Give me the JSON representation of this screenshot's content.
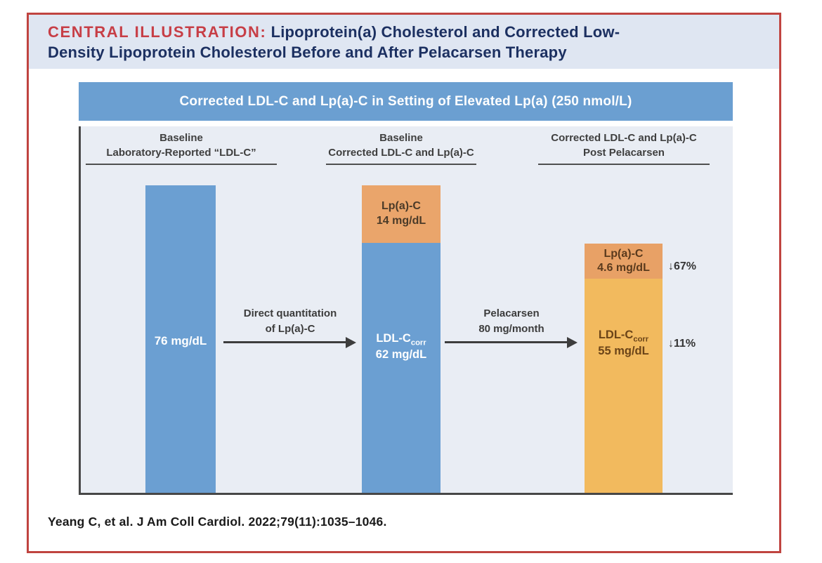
{
  "title": {
    "label": "CENTRAL ILLUSTRATION:",
    "text_line1": "Lipoprotein(a) Cholesterol and Corrected Low-",
    "text_line2": "Density Lipoprotein Cholesterol Before and After Pelacarsen Therapy"
  },
  "chart_title": "Corrected LDL-C and Lp(a)-C in Setting of Elevated Lp(a) (250 nmol/L)",
  "columns": [
    {
      "line1": "Baseline",
      "line2": "Laboratory-Reported “LDL-C”"
    },
    {
      "line1": "Baseline",
      "line2": "Corrected LDL-C and Lp(a)-C"
    },
    {
      "line1": "Corrected LDL-C and Lp(a)-C",
      "line2": "Post Pelacarsen"
    }
  ],
  "bars": {
    "bar1": {
      "value": "76 mg/dL"
    },
    "bar2": {
      "lpa_line1": "Lp(a)-C",
      "lpa_line2": "14 mg/dL",
      "ldl_name": "LDL-C",
      "ldl_sub": "corr",
      "ldl_value": "62 mg/dL"
    },
    "bar3": {
      "lpa_line1": "Lp(a)-C",
      "lpa_line2": "4.6 mg/dL",
      "lpa_change": "↓67%",
      "ldl_name": "LDL-C",
      "ldl_sub": "corr",
      "ldl_value": "55 mg/dL",
      "ldl_change": "↓11%"
    }
  },
  "arrows": {
    "arrow1": {
      "line1": "Direct quantitation",
      "line2": "of Lp(a)-C"
    },
    "arrow2": {
      "line1": "Pelacarsen",
      "line2": "80 mg/month"
    }
  },
  "citation": "Yeang C, et al. J Am Coll Cardiol. 2022;79(11):1035–1046.",
  "colors": {
    "frame_red": "#c04440",
    "title_label_red": "#c73e46",
    "title_navy": "#1c3061",
    "header_blue": "#6b9fd1",
    "panel_bg": "#e9edf4",
    "bar_blue": "#6b9fd2",
    "lpa_orange": "#eaa56b",
    "lpa_orange_dark": "#e8a166",
    "ldl_orange": "#f2ba5e",
    "axis_gray": "#474747"
  },
  "chart_data": {
    "type": "bar",
    "stacked": true,
    "title": "Corrected LDL-C and Lp(a)-C in Setting of Elevated Lp(a) (250 nmol/L)",
    "categories": [
      "Baseline Laboratory-Reported “LDL-C”",
      "Baseline Corrected LDL-C and Lp(a)-C",
      "Corrected LDL-C and Lp(a)-C Post Pelacarsen"
    ],
    "series": [
      {
        "name": "LDL-C / LDL-Ccorr",
        "values": [
          76,
          62,
          55
        ],
        "unit": "mg/dL"
      },
      {
        "name": "Lp(a)-C",
        "values": [
          null,
          14,
          4.6
        ],
        "unit": "mg/dL"
      }
    ],
    "bar_value_labels": [
      "76 mg/dL",
      "Lp(a)-C 14 mg/dL + LDL-Ccorr 62 mg/dL",
      "Lp(a)-C 4.6 mg/dL + LDL-Ccorr 55 mg/dL"
    ],
    "percent_changes": {
      "Lp(a)-C": "↓67%",
      "LDL-Ccorr": "↓11%"
    },
    "annotations": [
      "Direct quantitation of Lp(a)-C",
      "Pelacarsen 80 mg/month"
    ],
    "xlabel": "",
    "ylabel": "",
    "ylim": [
      0,
      76
    ],
    "grid": false,
    "legend": "none"
  }
}
